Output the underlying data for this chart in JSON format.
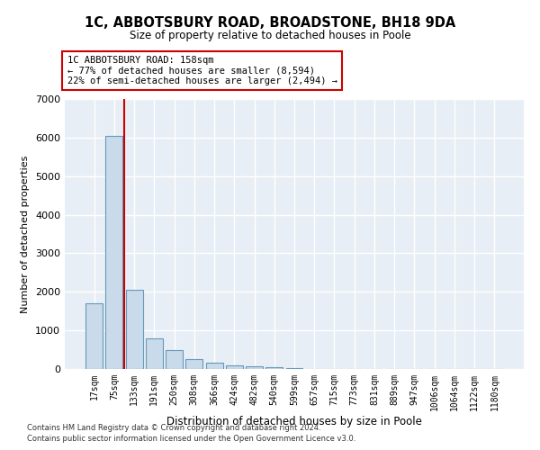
{
  "title_line1": "1C, ABBOTSBURY ROAD, BROADSTONE, BH18 9DA",
  "title_line2": "Size of property relative to detached houses in Poole",
  "xlabel": "Distribution of detached houses by size in Poole",
  "ylabel": "Number of detached properties",
  "annotation_line1": "1C ABBOTSBURY ROAD: 158sqm",
  "annotation_line2": "← 77% of detached houses are smaller (8,594)",
  "annotation_line3": "22% of semi-detached houses are larger (2,494) →",
  "bar_color": "#c9daea",
  "bar_edge_color": "#6699bb",
  "red_line_color": "#cc0000",
  "background_color": "#e8eef5",
  "grid_color": "#ffffff",
  "categories": [
    "17sqm",
    "75sqm",
    "133sqm",
    "191sqm",
    "250sqm",
    "308sqm",
    "366sqm",
    "424sqm",
    "482sqm",
    "540sqm",
    "599sqm",
    "657sqm",
    "715sqm",
    "773sqm",
    "831sqm",
    "889sqm",
    "947sqm",
    "1006sqm",
    "1064sqm",
    "1122sqm",
    "1180sqm"
  ],
  "values": [
    1700,
    6050,
    2050,
    800,
    480,
    250,
    175,
    100,
    80,
    45,
    20,
    10,
    5,
    0,
    0,
    0,
    0,
    0,
    0,
    0,
    0
  ],
  "red_line_x": 1.5,
  "ylim": [
    0,
    7000
  ],
  "yticks": [
    0,
    1000,
    2000,
    3000,
    4000,
    5000,
    6000,
    7000
  ],
  "footnote1": "Contains HM Land Registry data © Crown copyright and database right 2024.",
  "footnote2": "Contains public sector information licensed under the Open Government Licence v3.0."
}
